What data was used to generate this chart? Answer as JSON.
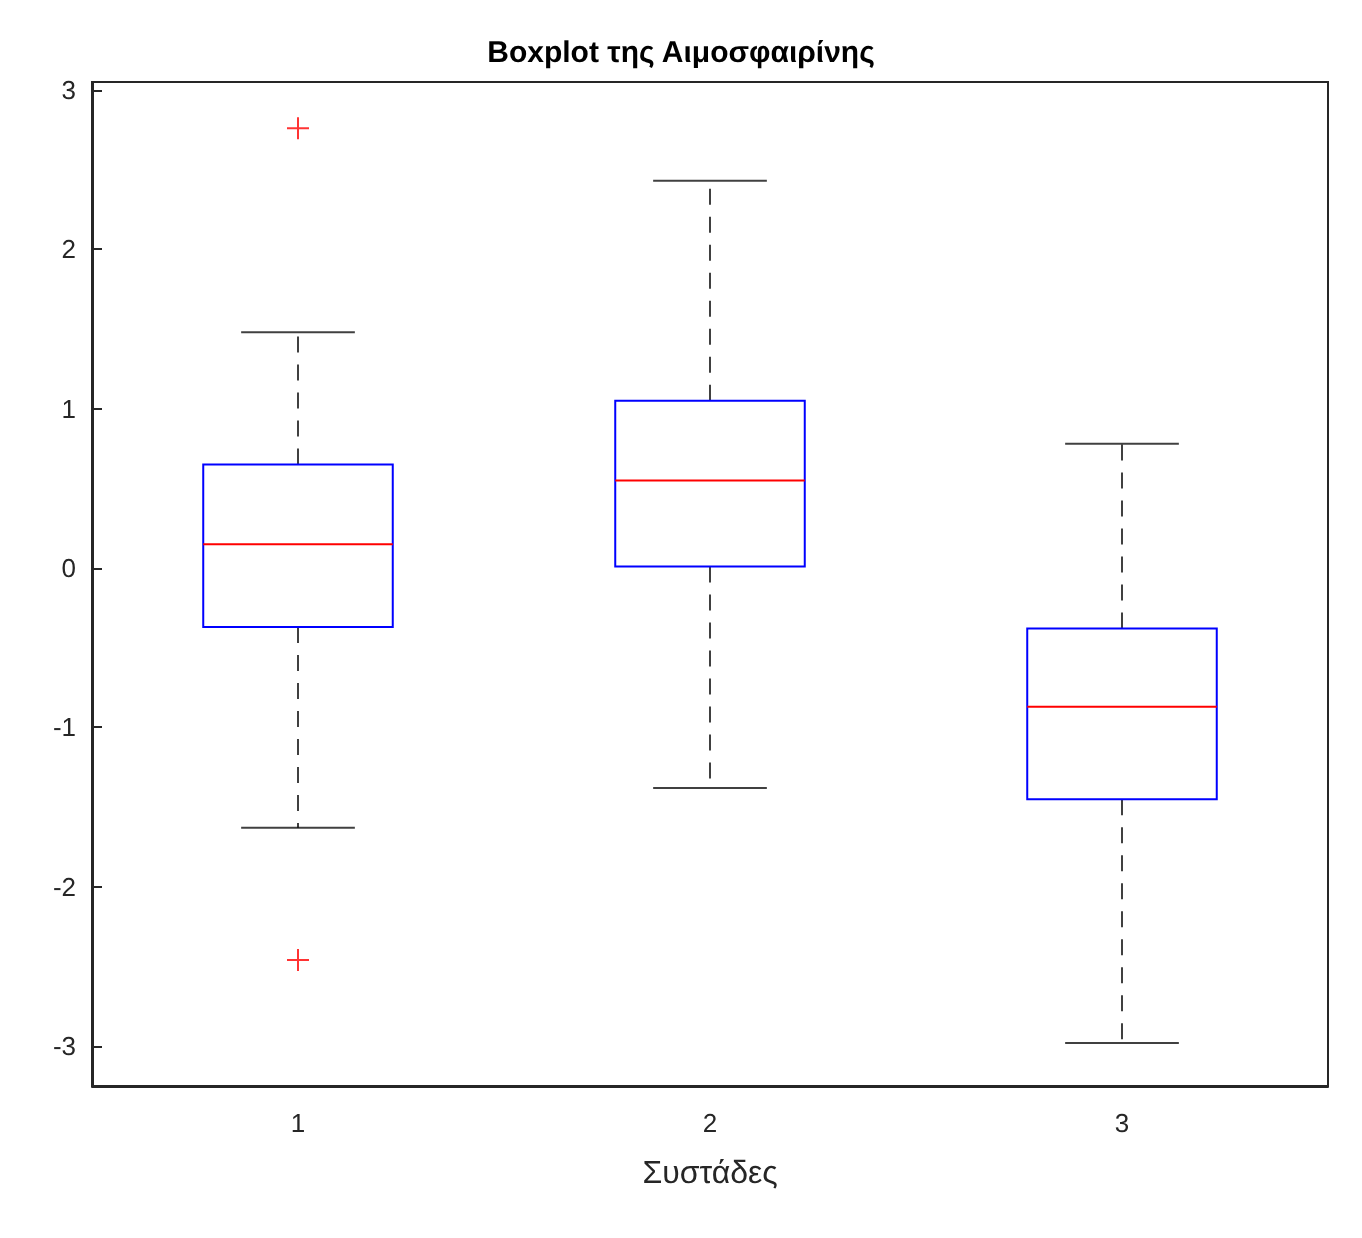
{
  "chart_data": {
    "type": "box",
    "title": "Boxplot της Αιμοσφαιρίνης",
    "xlabel": "Συστάδες",
    "categories": [
      "1",
      "2",
      "3"
    ],
    "boxes": [
      {
        "low": -1.63,
        "q1": -0.37,
        "median": 0.15,
        "q3": 0.65,
        "high": 1.48,
        "outliers": [
          2.76,
          -2.46
        ]
      },
      {
        "low": -1.38,
        "q1": 0.01,
        "median": 0.55,
        "q3": 1.05,
        "high": 2.43
      },
      {
        "low": -2.98,
        "q1": -1.45,
        "median": -0.87,
        "q3": -0.38,
        "high": 0.78
      }
    ],
    "ylim": [
      -3.25,
      3.05
    ],
    "yticks": [
      -3,
      -2,
      -1,
      0,
      1,
      2,
      3
    ],
    "grid": false
  }
}
